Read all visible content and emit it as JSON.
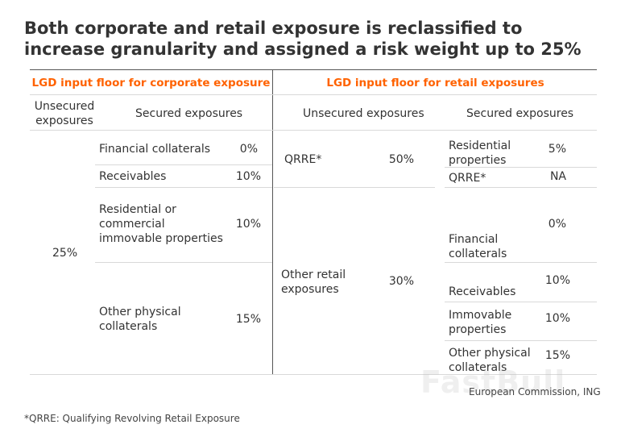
{
  "title": "Both corporate and retail exposure is reclassified to increase granularity and assigned a risk weight up to 25%",
  "corporate": {
    "header": "LGD input floor for corporate exposure",
    "col_unsecured": "Unsecured exposures",
    "col_secured": "Secured exposures",
    "unsecured_value": "25%",
    "rows": [
      {
        "label": "Financial collaterals",
        "value": "0%"
      },
      {
        "label": "Receivables",
        "value": "10%"
      },
      {
        "label": "Residential or commercial immovable properties",
        "value": "10%"
      },
      {
        "label": "Other physical collaterals",
        "value": "15%"
      }
    ]
  },
  "retail": {
    "header": "LGD input floor for retail exposures",
    "col_unsecured": "Unsecured exposures",
    "col_secured": "Secured exposures",
    "unsecured_rows": [
      {
        "label": "QRRE*",
        "value": "50%"
      },
      {
        "label": "Other retail exposures",
        "value": "30%"
      }
    ],
    "secured_rows": [
      {
        "label": "Residential properties",
        "value": "5%"
      },
      {
        "label": "QRRE*",
        "value": "NA"
      },
      {
        "label": "Financial collaterals",
        "value": "0%"
      },
      {
        "label": "Receivables",
        "value": "10%"
      },
      {
        "label": "Immovable properties",
        "value": "10%"
      },
      {
        "label": "Other physical collaterals",
        "value": "15%"
      }
    ]
  },
  "source": "European Commission, ING",
  "watermark": "FastBull",
  "footnote": "*QRRE: Qualifying Revolving Retail Exposure"
}
